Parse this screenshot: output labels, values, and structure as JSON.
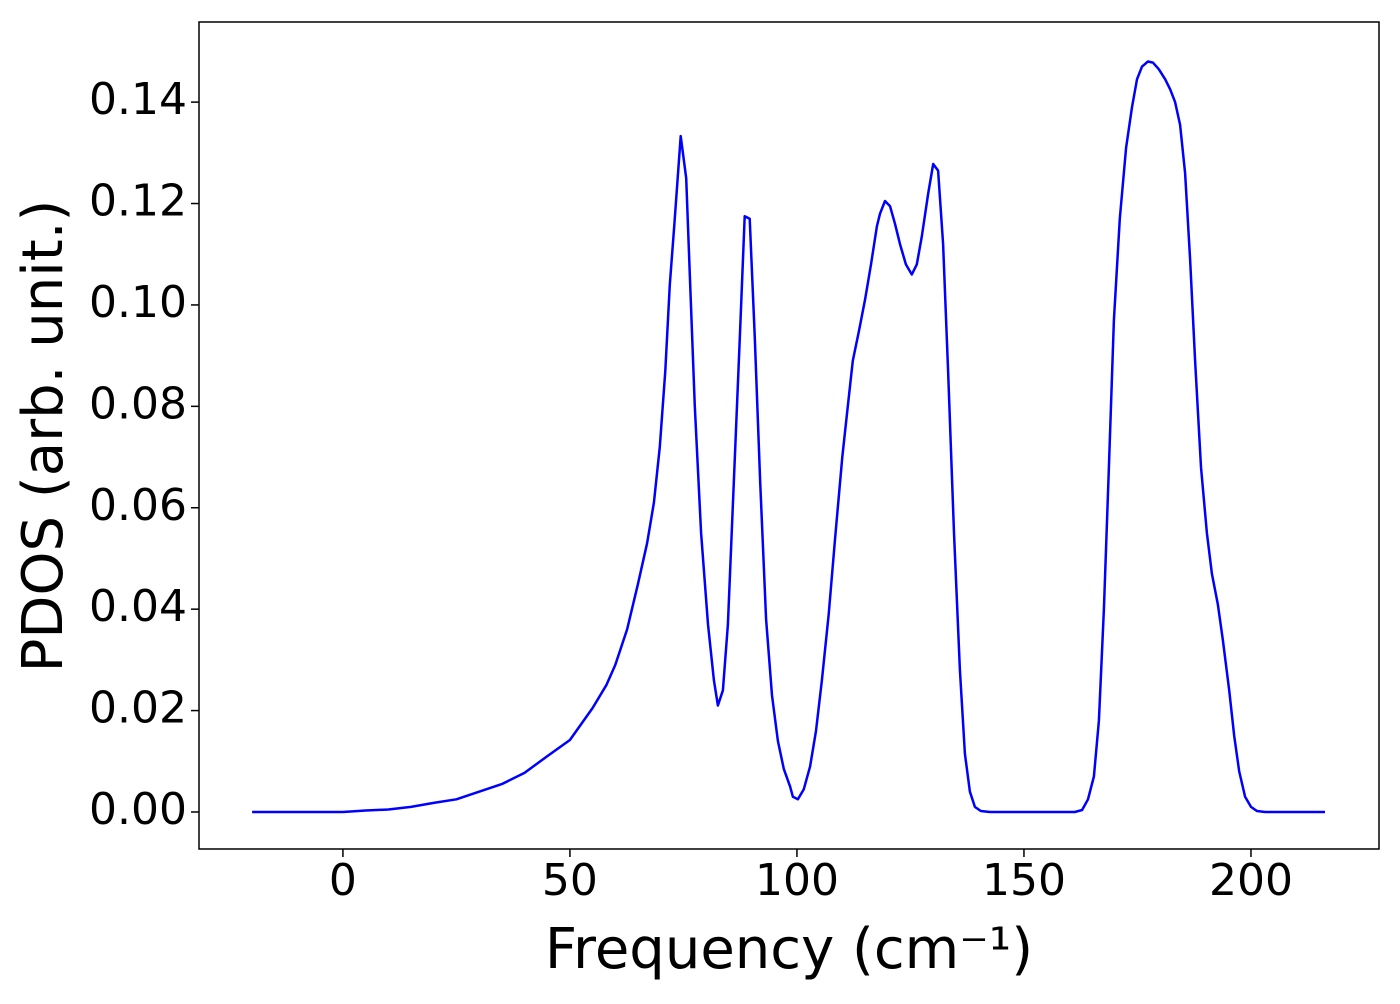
{
  "chart_data": {
    "type": "line",
    "x_label": "Frequency (cm⁻¹)",
    "y_label": "PDOS (arb. unit.)",
    "xlim": [
      -31.7,
      228.2
    ],
    "ylim": [
      -0.0073,
      0.1558
    ],
    "xticks": [
      0,
      50,
      100,
      150,
      200
    ],
    "yticks": [
      {
        "value": 0,
        "label": "0.00"
      },
      0.02,
      0.04,
      0.06,
      0.08,
      {
        "value": 0.1,
        "label": "0.10"
      },
      0.12,
      0.14
    ],
    "series": [
      {
        "color": "#0000ff",
        "x": [
          -20,
          0,
          5,
          10,
          15,
          20,
          25,
          30,
          35,
          40,
          45,
          50,
          55,
          58,
          60,
          62.6,
          65,
          67,
          68.5,
          69.8,
          71,
          72,
          73,
          74.4,
          75.6,
          76.4,
          77.5,
          78.9,
          80.4,
          81.7,
          82.6,
          83.7,
          84.8,
          86.1,
          87.4,
          88.5,
          89.6,
          90.7,
          91.9,
          93.2,
          94.5,
          95.8,
          97.1,
          98.5,
          99.1,
          100.2,
          101.5,
          102.9,
          104.2,
          105.5,
          107,
          108.4,
          110,
          111.2,
          112.3,
          113.7,
          115,
          116.3,
          117.6,
          118.3,
          119.4,
          120.5,
          121.6,
          122.7,
          124,
          125.3,
          126.4,
          127.5,
          128.9,
          130,
          131.1,
          132.2,
          133.3,
          134.6,
          135.9,
          137,
          138.1,
          139.2,
          140.5,
          142.5,
          161.2,
          162.8,
          164.1,
          165.4,
          166.5,
          167.6,
          168.7,
          169.8,
          171.1,
          172.5,
          173.8,
          174.9,
          176,
          177.3,
          178.4,
          179.7,
          181.1,
          182.2,
          183.3,
          184.4,
          185.5,
          186.6,
          187.7,
          189,
          190.3,
          191.4,
          192.7,
          193.8,
          195.2,
          196.3,
          197.4,
          198.7,
          200,
          201.3,
          203.1,
          216.3
        ],
        "values": [
          0,
          0,
          0.0003,
          0.0005,
          0.001,
          0.0018,
          0.0025,
          0.004,
          0.0055,
          0.0077,
          0.011,
          0.0142,
          0.0205,
          0.025,
          0.029,
          0.036,
          0.045,
          0.053,
          0.061,
          0.072,
          0.087,
          0.104,
          0.116,
          0.1333,
          0.125,
          0.106,
          0.08,
          0.055,
          0.037,
          0.026,
          0.021,
          0.024,
          0.037,
          0.065,
          0.093,
          0.1175,
          0.117,
          0.094,
          0.065,
          0.038,
          0.023,
          0.014,
          0.0085,
          0.005,
          0.003,
          0.0025,
          0.0045,
          0.009,
          0.016,
          0.026,
          0.039,
          0.054,
          0.07,
          0.08,
          0.089,
          0.095,
          0.101,
          0.108,
          0.1155,
          0.118,
          0.1205,
          0.1195,
          0.116,
          0.112,
          0.108,
          0.106,
          0.108,
          0.1135,
          0.122,
          0.1278,
          0.1265,
          0.112,
          0.087,
          0.055,
          0.028,
          0.0115,
          0.004,
          0.001,
          0.0002,
          0,
          0,
          0.0004,
          0.0025,
          0.007,
          0.018,
          0.04,
          0.068,
          0.097,
          0.117,
          0.131,
          0.139,
          0.1445,
          0.147,
          0.148,
          0.1478,
          0.1465,
          0.1445,
          0.1425,
          0.14,
          0.1355,
          0.126,
          0.109,
          0.089,
          0.068,
          0.055,
          0.047,
          0.041,
          0.034,
          0.024,
          0.015,
          0.008,
          0.003,
          0.001,
          0.0002,
          0,
          0
        ]
      }
    ]
  }
}
